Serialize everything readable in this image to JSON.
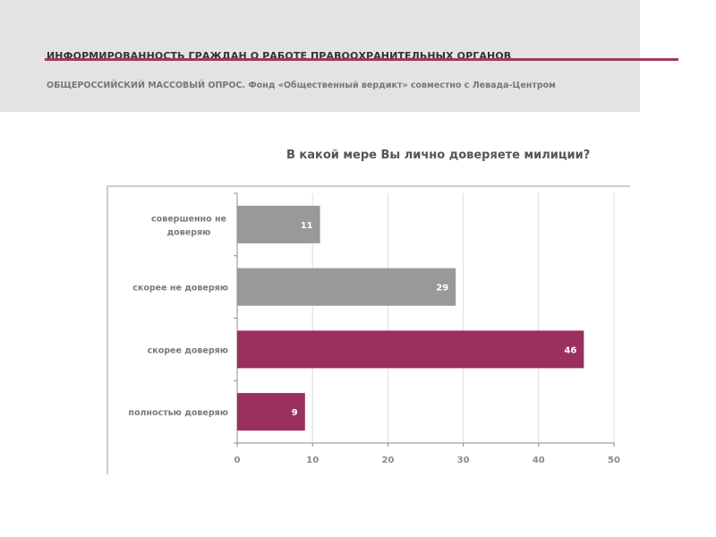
{
  "header": {
    "title": "ИНФОРМИРОВАННОСТЬ ГРАЖДАН О РАБОТЕ ПРАВООХРАНИТЕЛЬНЫХ ОРГАНОВ",
    "subtitle": "ОБЩЕРОССИЙСКИЙ МАССОВЫЙ ОПРОС. Фонд «Общественный вердикт» совместно с Левада-Центром",
    "accent_color": "#9b3a63",
    "band_color": "#e3e3e3"
  },
  "chart_data": {
    "type": "bar",
    "orientation": "horizontal",
    "title": "В какой мере Вы лично доверяете милиции?",
    "xlabel": "",
    "ylabel": "",
    "categories": [
      [
        "совершенно не",
        "доверяю"
      ],
      [
        "скорее не доверяю"
      ],
      [
        "скорее доверяю"
      ],
      [
        "полностью доверяю"
      ]
    ],
    "values": [
      11,
      29,
      46,
      9
    ],
    "bar_colors": [
      "#999999",
      "#999999",
      "#9b2f5f",
      "#9b2f5f"
    ],
    "xlim": [
      0,
      50
    ],
    "xticks": [
      0,
      10,
      20,
      30,
      40,
      50
    ],
    "grid": "vertical",
    "legend": "none"
  }
}
